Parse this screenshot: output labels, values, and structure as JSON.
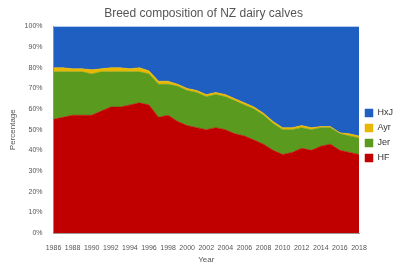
{
  "chart_data": {
    "type": "area",
    "title": "Breed composition of NZ dairy calves",
    "x_label": "Year",
    "y_label": "Percentage",
    "stacked": true,
    "grid": false,
    "legend": "right",
    "x": [
      1986,
      1987,
      1988,
      1989,
      1990,
      1991,
      1992,
      1993,
      1994,
      1995,
      1996,
      1997,
      1998,
      1999,
      2000,
      2001,
      2002,
      2003,
      2004,
      2005,
      2006,
      2007,
      2008,
      2009,
      2010,
      2011,
      2012,
      2013,
      2014,
      2015,
      2016,
      2017,
      2018
    ],
    "xlim": [
      1986,
      2018
    ],
    "xticks": [
      1986,
      1988,
      1990,
      1992,
      1994,
      1996,
      1998,
      2000,
      2002,
      2004,
      2006,
      2008,
      2010,
      2012,
      2014,
      2016,
      2018
    ],
    "ylim": [
      0,
      100
    ],
    "yticks": [
      {
        "value": 0,
        "label": "0%"
      },
      {
        "value": 10,
        "label": "10%"
      },
      {
        "value": 20,
        "label": "20%"
      },
      {
        "value": 30,
        "label": "30%"
      },
      {
        "value": 40,
        "label": "40%"
      },
      {
        "value": 50,
        "label": "50%"
      },
      {
        "value": 60,
        "label": "60%"
      },
      {
        "value": 70,
        "label": "70%"
      },
      {
        "value": 80,
        "label": "80%"
      },
      {
        "value": 90,
        "label": "90%"
      },
      {
        "value": 100,
        "label": "100%"
      }
    ],
    "series": [
      {
        "name": "HF",
        "color": "#c00000",
        "values": [
          55,
          56,
          57,
          57,
          57,
          59,
          61,
          61,
          62,
          63,
          62,
          56,
          57,
          54,
          52,
          51,
          50,
          51,
          50,
          48,
          47,
          45,
          43,
          40,
          38,
          39,
          41,
          40,
          42,
          43,
          40,
          39,
          38
        ]
      },
      {
        "name": "Jer",
        "color": "#5a9a1e",
        "values": [
          23,
          22,
          21,
          21,
          20,
          19,
          17,
          17,
          16,
          15,
          15,
          16,
          15,
          17,
          17,
          17,
          16,
          16,
          16,
          16,
          15,
          15,
          14,
          13,
          12,
          11,
          10,
          10,
          9,
          8,
          8,
          8,
          8
        ]
      },
      {
        "name": "Ayr",
        "color": "#e8b800",
        "values": [
          2,
          2,
          1.5,
          1.5,
          2,
          1.5,
          2,
          2,
          1.5,
          2,
          1.5,
          1.5,
          1.5,
          1,
          1,
          1,
          1,
          1,
          1,
          1,
          1,
          1,
          1,
          1,
          1,
          1,
          1,
          1,
          0.5,
          0.5,
          0.5,
          1,
          1
        ]
      },
      {
        "name": "HxJ",
        "color": "#1f5fc2",
        "values": [
          20,
          20,
          20.5,
          20.5,
          21,
          20.5,
          20,
          20,
          20.5,
          20,
          21.5,
          26.5,
          26.5,
          28,
          30,
          31,
          33,
          32,
          33,
          35,
          37,
          39,
          42,
          46,
          49,
          49,
          48,
          49,
          48.5,
          48.5,
          51.5,
          52,
          53
        ]
      }
    ]
  }
}
